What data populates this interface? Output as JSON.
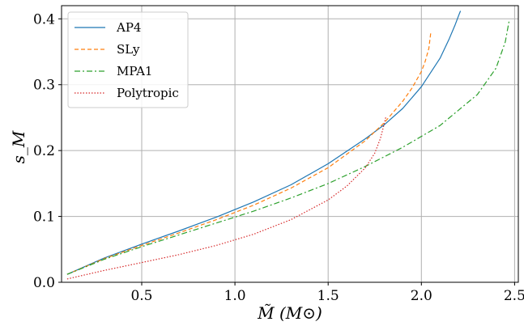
{
  "chart_data": {
    "type": "line",
    "title": "",
    "xlabel": "M̃ (M⊙)",
    "ylabel": "s_M",
    "xlim": [
      0.07,
      2.52
    ],
    "ylim": [
      0.0,
      0.42
    ],
    "xticks": [
      0.5,
      1.0,
      1.5,
      2.0,
      2.5
    ],
    "yticks": [
      0.0,
      0.1,
      0.2,
      0.3,
      0.4
    ],
    "grid": true,
    "legend_position": "top-left",
    "series": [
      {
        "name": "AP4",
        "color": "#1f77b4",
        "style": "solid",
        "x": [
          0.1,
          0.3,
          0.5,
          0.7,
          0.9,
          1.1,
          1.3,
          1.5,
          1.7,
          1.8,
          1.9,
          2.0,
          2.1,
          2.15,
          2.18,
          2.2,
          2.21
        ],
        "y": [
          0.012,
          0.037,
          0.058,
          0.078,
          0.099,
          0.122,
          0.148,
          0.18,
          0.218,
          0.239,
          0.264,
          0.297,
          0.34,
          0.37,
          0.39,
          0.405,
          0.412
        ]
      },
      {
        "name": "SLy",
        "color": "#ff7f0e",
        "style": "dashed",
        "x": [
          0.1,
          0.3,
          0.5,
          0.7,
          0.9,
          1.1,
          1.3,
          1.5,
          1.7,
          1.8,
          1.9,
          1.95,
          2.0,
          2.02,
          2.04,
          2.05
        ],
        "y": [
          0.012,
          0.036,
          0.056,
          0.075,
          0.095,
          0.117,
          0.143,
          0.174,
          0.215,
          0.242,
          0.275,
          0.295,
          0.32,
          0.335,
          0.355,
          0.378
        ]
      },
      {
        "name": "MPA1",
        "color": "#2ca02c",
        "style": "dashdot",
        "x": [
          0.1,
          0.3,
          0.5,
          0.7,
          0.9,
          1.1,
          1.3,
          1.5,
          1.7,
          1.9,
          2.1,
          2.3,
          2.4,
          2.45,
          2.47
        ],
        "y": [
          0.012,
          0.035,
          0.054,
          0.072,
          0.09,
          0.108,
          0.128,
          0.15,
          0.176,
          0.205,
          0.238,
          0.285,
          0.325,
          0.365,
          0.396
        ]
      },
      {
        "name": "Polytropic",
        "color": "#d62728",
        "style": "dotted",
        "x": [
          0.1,
          0.3,
          0.5,
          0.7,
          0.9,
          1.1,
          1.3,
          1.5,
          1.6,
          1.7,
          1.75,
          1.78,
          1.8,
          1.81
        ],
        "y": [
          0.005,
          0.018,
          0.03,
          0.042,
          0.056,
          0.073,
          0.095,
          0.125,
          0.146,
          0.174,
          0.196,
          0.218,
          0.24,
          0.252
        ]
      }
    ]
  }
}
